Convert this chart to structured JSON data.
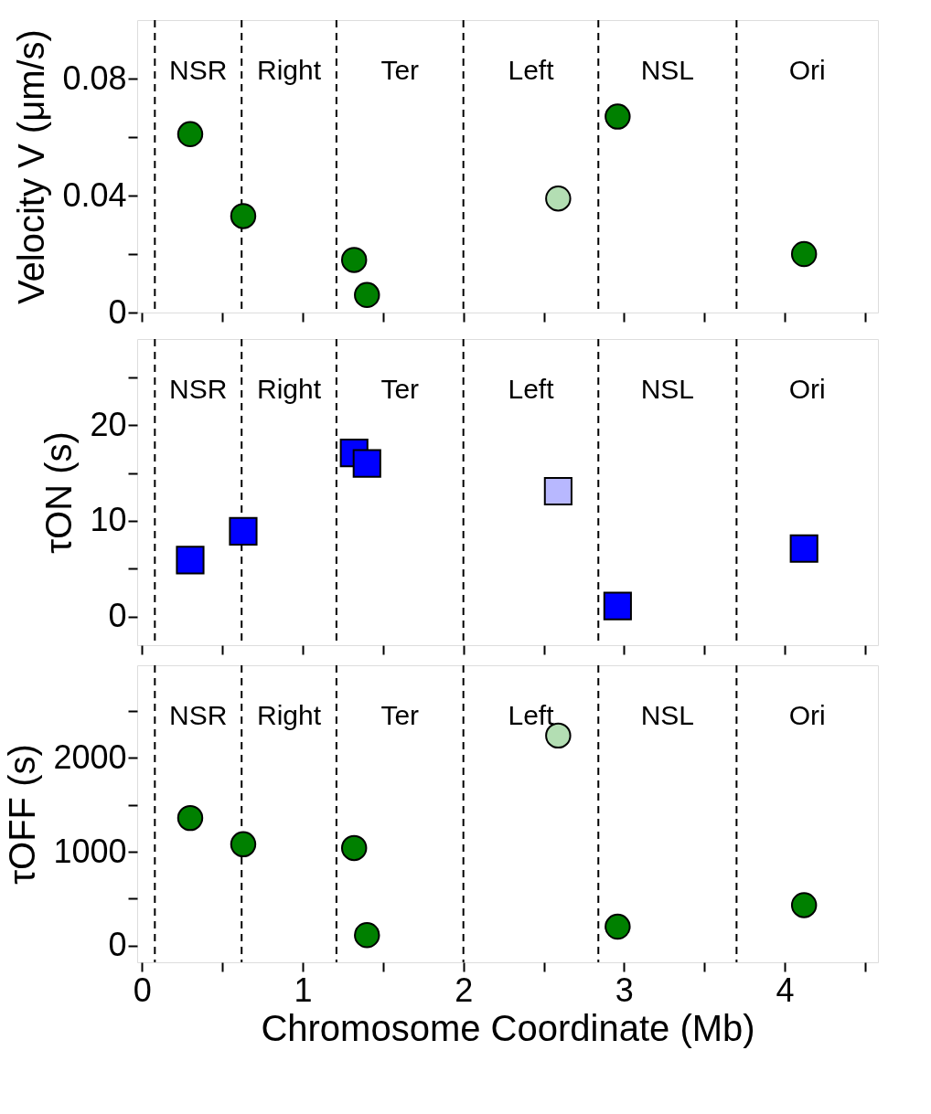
{
  "chart_data": [
    {
      "type": "scatter",
      "ylabel": "Velocity V (μm/s)",
      "marker": "circle",
      "tick_labels": "y",
      "series": [
        {
          "color": "#008000",
          "x": [
            0.3,
            0.63,
            1.32,
            1.4,
            2.96,
            4.12
          ],
          "values": [
            0.061,
            0.033,
            0.018,
            0.006,
            0.067,
            0.02
          ]
        },
        {
          "color": "#b3deb3",
          "x": [
            2.59
          ],
          "values": [
            0.039
          ]
        }
      ],
      "xlim": [
        -0.03,
        4.58
      ],
      "xticks": [
        0,
        {
          "value": 0.5,
          "label": null
        },
        1,
        {
          "value": 1.5,
          "label": null
        },
        2,
        {
          "value": 2.5,
          "label": null
        },
        3,
        {
          "value": 3.5,
          "label": null
        },
        4,
        {
          "value": 4.5,
          "label": null
        }
      ],
      "ylim": [
        0,
        0.1
      ],
      "yticks": [
        0,
        {
          "value": 0.02,
          "label": null
        },
        0.04,
        {
          "value": 0.06,
          "label": null
        },
        0.08
      ],
      "ref_lines": [
        {
          "axis": "x",
          "value": 0.08,
          "line_style": "dashed"
        },
        {
          "axis": "x",
          "value": 0.62,
          "line_style": "dashed"
        },
        {
          "axis": "x",
          "value": 1.21,
          "line_style": "dashed"
        },
        {
          "axis": "x",
          "value": 2.0,
          "line_style": "dashed"
        },
        {
          "axis": "x",
          "value": 2.84,
          "line_style": "dashed"
        },
        {
          "axis": "x",
          "value": 3.7,
          "line_style": "dashed"
        }
      ],
      "annotations": [
        "NSR",
        "Right",
        "Ter",
        "Left",
        "NSL",
        "Ori"
      ]
    },
    {
      "type": "scatter",
      "ylabel": "τON (s)",
      "marker": "square",
      "tick_labels": "y",
      "series": [
        {
          "color": "#0000ff",
          "x": [
            0.3,
            0.63,
            1.32,
            1.4,
            2.96,
            4.12
          ],
          "values": [
            5.9,
            8.9,
            17.1,
            16.0,
            1.1,
            7.1
          ]
        },
        {
          "color": "#b8b8ff",
          "x": [
            2.59
          ],
          "values": [
            13.1
          ]
        }
      ],
      "xlim": [
        -0.03,
        4.58
      ],
      "xticks": [
        0,
        {
          "value": 0.5,
          "label": null
        },
        1,
        {
          "value": 1.5,
          "label": null
        },
        2,
        {
          "value": 2.5,
          "label": null
        },
        3,
        {
          "value": 3.5,
          "label": null
        },
        4,
        {
          "value": 4.5,
          "label": null
        }
      ],
      "ylim": [
        -3,
        29
      ],
      "yticks": [
        0,
        {
          "value": 5,
          "label": null
        },
        10,
        {
          "value": 15,
          "label": null
        },
        20,
        {
          "value": 25,
          "label": null
        }
      ],
      "ref_lines": [
        {
          "axis": "x",
          "value": 0.08,
          "line_style": "dashed"
        },
        {
          "axis": "x",
          "value": 0.62,
          "line_style": "dashed"
        },
        {
          "axis": "x",
          "value": 1.21,
          "line_style": "dashed"
        },
        {
          "axis": "x",
          "value": 2.0,
          "line_style": "dashed"
        },
        {
          "axis": "x",
          "value": 2.84,
          "line_style": "dashed"
        },
        {
          "axis": "x",
          "value": 3.7,
          "line_style": "dashed"
        }
      ],
      "annotations": [
        "NSR",
        "Right",
        "Ter",
        "Left",
        "NSL",
        "Ori"
      ]
    },
    {
      "type": "scatter",
      "ylabel": "τOFF (s)",
      "xlabel": "Chromosome Coordinate (Mb)",
      "marker": "circle",
      "series": [
        {
          "color": "#008000",
          "x": [
            0.3,
            0.63,
            1.32,
            1.4,
            2.96,
            4.12
          ],
          "values": [
            1360,
            1080,
            1040,
            110,
            200,
            430
          ]
        },
        {
          "color": "#b3deb3",
          "x": [
            2.59
          ],
          "values": [
            2240
          ]
        }
      ],
      "xlim": [
        -0.03,
        4.58
      ],
      "xticks": [
        0,
        {
          "value": 0.5,
          "label": null
        },
        1,
        {
          "value": 1.5,
          "label": null
        },
        2,
        {
          "value": 2.5,
          "label": null
        },
        3,
        {
          "value": 3.5,
          "label": null
        },
        4,
        {
          "value": 4.5,
          "label": null
        }
      ],
      "ylim": [
        -180,
        2990
      ],
      "yticks": [
        0,
        {
          "value": 500,
          "label": null
        },
        1000,
        {
          "value": 1500,
          "label": null
        },
        2000,
        {
          "value": 2500,
          "label": null
        }
      ],
      "ref_lines": [
        {
          "axis": "x",
          "value": 0.08,
          "line_style": "dashed"
        },
        {
          "axis": "x",
          "value": 0.62,
          "line_style": "dashed"
        },
        {
          "axis": "x",
          "value": 1.21,
          "line_style": "dashed"
        },
        {
          "axis": "x",
          "value": 2.0,
          "line_style": "dashed"
        },
        {
          "axis": "x",
          "value": 2.84,
          "line_style": "dashed"
        },
        {
          "axis": "x",
          "value": 3.7,
          "line_style": "dashed"
        }
      ],
      "annotations": [
        "NSR",
        "Right",
        "Ter",
        "Left",
        "NSL",
        "Ori"
      ]
    }
  ]
}
